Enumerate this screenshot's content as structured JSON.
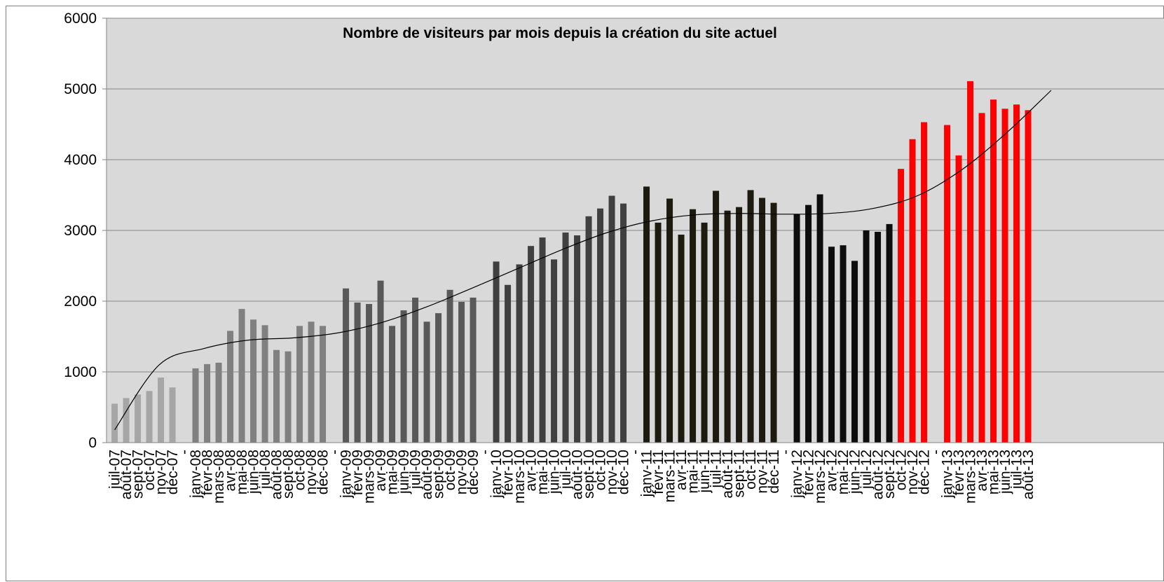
{
  "chart_data": {
    "type": "bar",
    "title": "Nombre de visiteurs par mois depuis la création du site actuel",
    "xlabel": "",
    "ylabel": "",
    "ylim": [
      0,
      6000
    ],
    "y_ticks": [
      0,
      1000,
      2000,
      3000,
      4000,
      5000,
      6000
    ],
    "grid": true,
    "legend": "none",
    "trendline": "polynomial",
    "colors": {
      "plot_bg": "#d9d9d9",
      "grid": "#888888",
      "year_2007": "#a6a6a6",
      "year_2008": "#808080",
      "year_2009": "#595959",
      "year_2010": "#404040",
      "year_2011": "#1d1b10",
      "year_2012": "#0d0d0d",
      "year_2012_q4": "#ff0000",
      "year_2013": "#ff0000",
      "trendline": "#000000"
    },
    "categories": [
      "juil-07",
      "août-07",
      "sept-07",
      "oct-07",
      "nov-07",
      "déc-07",
      "-",
      "janv-08",
      "févr-08",
      "mars-08",
      "avr-08",
      "mai-08",
      "juin-08",
      "juil-08",
      "août-08",
      "sept-08",
      "oct-08",
      "nov-08",
      "déc-08",
      "-",
      "janv-09",
      "févr-09",
      "mars-09",
      "avr-09",
      "mai-09",
      "juin-09",
      "juil-09",
      "août-09",
      "sept-09",
      "oct-09",
      "nov-09",
      "déc-09",
      "-",
      "janv-10",
      "févr-10",
      "mars-10",
      "avr-10",
      "mai-10",
      "juin-10",
      "juil-10",
      "août-10",
      "sept-10",
      "oct-10",
      "nov-10",
      "déc-10",
      "-",
      "janv-11",
      "févr-11",
      "mars-11",
      "avr-11",
      "mai-11",
      "juin-11",
      "juil-11",
      "août-11",
      "sept-11",
      "oct-11",
      "nov-11",
      "déc-11",
      "-",
      "janv-12",
      "févr-12",
      "mars-12",
      "avr-12",
      "mai-12",
      "juin-12",
      "juil-12",
      "août-12",
      "sept-12",
      "oct-12",
      "nov-12",
      "déc-12",
      "-",
      "janv-13",
      "févr-13",
      "mars-13",
      "avr-13",
      "mai-13",
      "juin-13",
      "juil-13",
      "août-13"
    ],
    "values": [
      550,
      630,
      680,
      730,
      920,
      780,
      null,
      1050,
      1110,
      1130,
      1580,
      1890,
      1740,
      1660,
      1310,
      1290,
      1650,
      1710,
      1650,
      null,
      2180,
      1980,
      1960,
      2290,
      1650,
      1870,
      2050,
      1710,
      1830,
      2160,
      1990,
      2050,
      null,
      2560,
      2230,
      2520,
      2780,
      2900,
      2590,
      2970,
      2930,
      3200,
      3310,
      3490,
      3380,
      null,
      3620,
      3110,
      3450,
      2940,
      3300,
      3110,
      3560,
      3280,
      3330,
      3570,
      3460,
      3390,
      null,
      3230,
      3360,
      3510,
      2770,
      2790,
      2570,
      3000,
      2980,
      3090,
      3870,
      4290,
      4530,
      null,
      4490,
      4060,
      5110,
      4660,
      4850,
      4720,
      4780,
      4700
    ],
    "bar_colors": [
      "year_2007",
      "year_2007",
      "year_2007",
      "year_2007",
      "year_2007",
      "year_2007",
      null,
      "year_2008",
      "year_2008",
      "year_2008",
      "year_2008",
      "year_2008",
      "year_2008",
      "year_2008",
      "year_2008",
      "year_2008",
      "year_2008",
      "year_2008",
      "year_2008",
      null,
      "year_2009",
      "year_2009",
      "year_2009",
      "year_2009",
      "year_2009",
      "year_2009",
      "year_2009",
      "year_2009",
      "year_2009",
      "year_2009",
      "year_2009",
      "year_2009",
      null,
      "year_2010",
      "year_2010",
      "year_2010",
      "year_2010",
      "year_2010",
      "year_2010",
      "year_2010",
      "year_2010",
      "year_2010",
      "year_2010",
      "year_2010",
      "year_2010",
      null,
      "year_2011",
      "year_2011",
      "year_2011",
      "year_2011",
      "year_2011",
      "year_2011",
      "year_2011",
      "year_2011",
      "year_2011",
      "year_2011",
      "year_2011",
      "year_2011",
      null,
      "year_2012",
      "year_2012",
      "year_2012",
      "year_2012",
      "year_2012",
      "year_2012",
      "year_2012",
      "year_2012",
      "year_2012",
      "year_2012_q4",
      "year_2012_q4",
      "year_2012_q4",
      null,
      "year_2013",
      "year_2013",
      "year_2013",
      "year_2013",
      "year_2013",
      "year_2013",
      "year_2013",
      "year_2013"
    ],
    "trendline_values": [
      180,
      1100,
      1330,
      1450,
      1480,
      1550,
      1700,
      1920,
      2180,
      2450,
      2720,
      2960,
      3130,
      3220,
      3240,
      3230,
      3240,
      3310,
      3490,
      3860,
      4380,
      4980
    ]
  }
}
